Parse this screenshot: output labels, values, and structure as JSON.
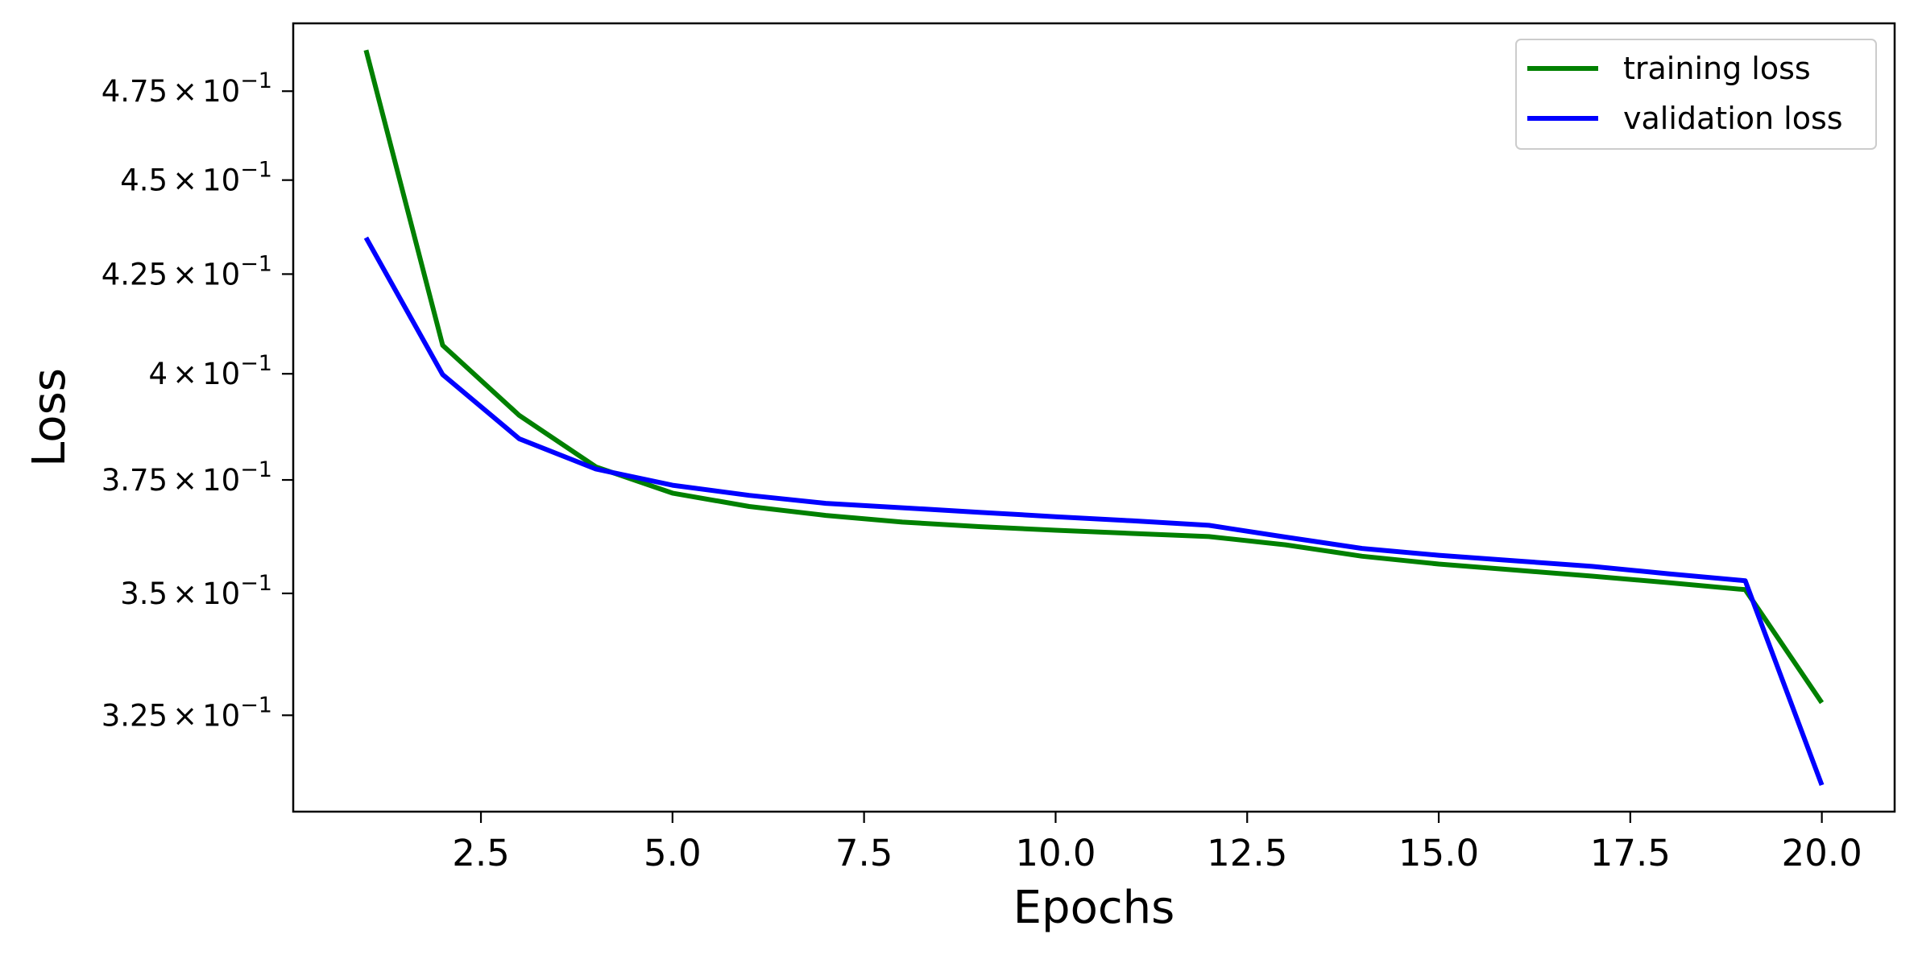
{
  "chart_data": {
    "type": "line",
    "title": "",
    "xlabel": "Epochs",
    "ylabel": "Loss",
    "yscale": "log",
    "grid": false,
    "legend_position": "top-right",
    "xlim": [
      0.05,
      20.95
    ],
    "ylim": [
      0.3065,
      0.495
    ],
    "x_ticks": [
      {
        "value": 2.5,
        "label": "2.5"
      },
      {
        "value": 5.0,
        "label": "5.0"
      },
      {
        "value": 7.5,
        "label": "7.5"
      },
      {
        "value": 10.0,
        "label": "10.0"
      },
      {
        "value": 12.5,
        "label": "12.5"
      },
      {
        "value": 15.0,
        "label": "15.0"
      },
      {
        "value": 17.5,
        "label": "17.5"
      },
      {
        "value": 20.0,
        "label": "20.0"
      }
    ],
    "y_ticks": [
      {
        "value": 0.325,
        "mantissa": "3.25"
      },
      {
        "value": 0.35,
        "mantissa": "3.5"
      },
      {
        "value": 0.375,
        "mantissa": "3.75"
      },
      {
        "value": 0.4,
        "mantissa": "4"
      },
      {
        "value": 0.425,
        "mantissa": "4.25"
      },
      {
        "value": 0.45,
        "mantissa": "4.5"
      },
      {
        "value": 0.475,
        "mantissa": "4.75"
      }
    ],
    "y_tick_times": "×",
    "y_tick_base": "10",
    "y_tick_exponent": "−1",
    "x": [
      1,
      2,
      3,
      4,
      5,
      6,
      7,
      8,
      9,
      10,
      11,
      12,
      13,
      14,
      15,
      16,
      17,
      18,
      19,
      20
    ],
    "series": [
      {
        "name": "training loss",
        "color": "#008000",
        "values": [
          0.487,
          0.407,
          0.39,
          0.378,
          0.372,
          0.369,
          0.367,
          0.3655,
          0.3645,
          0.3637,
          0.363,
          0.3623,
          0.3605,
          0.358,
          0.3563,
          0.355,
          0.3537,
          0.3523,
          0.3508,
          0.3275
        ]
      },
      {
        "name": "validation loss",
        "color": "#0000ff",
        "values": [
          0.4345,
          0.3998,
          0.3845,
          0.3775,
          0.3738,
          0.3715,
          0.3697,
          0.3687,
          0.3677,
          0.3667,
          0.3658,
          0.3648,
          0.3622,
          0.3597,
          0.3582,
          0.357,
          0.3558,
          0.3542,
          0.3527,
          0.3115
        ]
      }
    ]
  }
}
